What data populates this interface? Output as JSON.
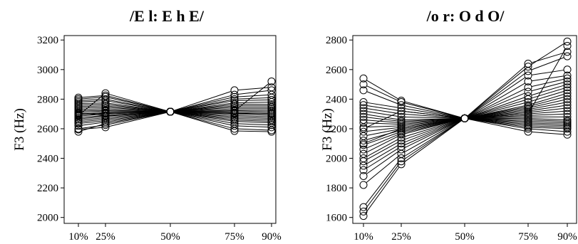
{
  "chart_data": [
    {
      "type": "line",
      "title": "/E l: E h E/",
      "xlabel": "",
      "ylabel": "F3 (Hz)",
      "x": [
        "10%",
        "25%",
        "50%",
        "75%",
        "90%"
      ],
      "ylim": [
        1960,
        3230
      ],
      "yticks": [
        2000,
        2200,
        2400,
        2600,
        2800,
        3000,
        3200
      ],
      "grid": false,
      "normalization_value_50pct": 2715,
      "series": [
        {
          "values": [
            2580,
            2635,
            2715,
            2600,
            2590
          ]
        },
        {
          "values": [
            2600,
            2625,
            2715,
            2620,
            2610
          ]
        },
        {
          "values": [
            2620,
            2645,
            2715,
            2635,
            2625
          ]
        },
        {
          "values": [
            2635,
            2655,
            2715,
            2650,
            2640
          ]
        },
        {
          "values": [
            2645,
            2665,
            2715,
            2660,
            2650
          ]
        },
        {
          "values": [
            2655,
            2675,
            2715,
            2670,
            2660
          ]
        },
        {
          "values": [
            2665,
            2685,
            2715,
            2680,
            2670
          ]
        },
        {
          "values": [
            2675,
            2690,
            2715,
            2690,
            2680
          ]
        },
        {
          "values": [
            2685,
            2700,
            2715,
            2700,
            2690
          ]
        },
        {
          "values": [
            2695,
            2705,
            2715,
            2705,
            2700
          ]
        },
        {
          "values": [
            2700,
            2710,
            2715,
            2710,
            2705
          ]
        },
        {
          "values": [
            2710,
            2720,
            2715,
            2720,
            2715
          ]
        },
        {
          "values": [
            2720,
            2725,
            2715,
            2725,
            2725
          ]
        },
        {
          "values": [
            2730,
            2735,
            2715,
            2735,
            2735
          ]
        },
        {
          "values": [
            2740,
            2745,
            2715,
            2745,
            2745
          ]
        },
        {
          "values": [
            2750,
            2755,
            2715,
            2755,
            2755
          ]
        },
        {
          "values": [
            2760,
            2765,
            2715,
            2765,
            2765
          ]
        },
        {
          "values": [
            2770,
            2775,
            2715,
            2775,
            2780
          ]
        },
        {
          "values": [
            2780,
            2790,
            2715,
            2790,
            2795
          ]
        },
        {
          "values": [
            2790,
            2800,
            2715,
            2800,
            2810
          ]
        },
        {
          "values": [
            2800,
            2815,
            2715,
            2815,
            2830
          ]
        },
        {
          "values": [
            2810,
            2825,
            2715,
            2830,
            2860
          ]
        },
        {
          "values": [
            2690,
            2840,
            2715,
            2860,
            2880
          ]
        },
        {
          "values": [
            2705,
            2690,
            2715,
            2720,
            2920
          ]
        },
        {
          "values": [
            2595,
            2610,
            2715,
            2585,
            2580
          ]
        }
      ]
    },
    {
      "type": "line",
      "title": "/o r: O d O/",
      "xlabel": "",
      "ylabel": "F3 (Hz)",
      "x": [
        "10%",
        "25%",
        "50%",
        "75%",
        "90%"
      ],
      "ylim": [
        1560,
        2830
      ],
      "yticks": [
        1600,
        1800,
        2000,
        2200,
        2400,
        2600,
        2800
      ],
      "grid": false,
      "normalization_value_50pct": 2270,
      "series": [
        {
          "values": [
            1610,
            1960,
            2270,
            2180,
            2160
          ]
        },
        {
          "values": [
            1640,
            1980,
            2270,
            2200,
            2180
          ]
        },
        {
          "values": [
            1670,
            2000,
            2270,
            2210,
            2200
          ]
        },
        {
          "values": [
            1820,
            2030,
            2270,
            2220,
            2210
          ]
        },
        {
          "values": [
            1880,
            2060,
            2270,
            2230,
            2220
          ]
        },
        {
          "values": [
            1920,
            2080,
            2270,
            2240,
            2230
          ]
        },
        {
          "values": [
            1950,
            2100,
            2270,
            2250,
            2240
          ]
        },
        {
          "values": [
            1980,
            2120,
            2270,
            2260,
            2250
          ]
        },
        {
          "values": [
            2000,
            2140,
            2270,
            2270,
            2260
          ]
        },
        {
          "values": [
            2030,
            2160,
            2270,
            2280,
            2280
          ]
        },
        {
          "values": [
            2060,
            2170,
            2270,
            2290,
            2300
          ]
        },
        {
          "values": [
            2090,
            2180,
            2270,
            2300,
            2320
          ]
        },
        {
          "values": [
            2120,
            2190,
            2270,
            2310,
            2340
          ]
        },
        {
          "values": [
            2150,
            2200,
            2270,
            2320,
            2360
          ]
        },
        {
          "values": [
            2180,
            2210,
            2270,
            2330,
            2380
          ]
        },
        {
          "values": [
            2210,
            2220,
            2270,
            2340,
            2400
          ]
        },
        {
          "values": [
            2240,
            2230,
            2270,
            2350,
            2420
          ]
        },
        {
          "values": [
            2260,
            2240,
            2270,
            2360,
            2440
          ]
        },
        {
          "values": [
            2280,
            2250,
            2270,
            2380,
            2460
          ]
        },
        {
          "values": [
            2300,
            2260,
            2270,
            2400,
            2480
          ]
        },
        {
          "values": [
            2320,
            2280,
            2270,
            2420,
            2500
          ]
        },
        {
          "values": [
            2340,
            2300,
            2270,
            2450,
            2520
          ]
        },
        {
          "values": [
            2360,
            2320,
            2270,
            2480,
            2540
          ]
        },
        {
          "values": [
            2380,
            2340,
            2270,
            2520,
            2560
          ]
        },
        {
          "values": [
            2460,
            2360,
            2270,
            2560,
            2600
          ]
        },
        {
          "values": [
            2500,
            2380,
            2270,
            2590,
            2690
          ]
        },
        {
          "values": [
            2540,
            2390,
            2270,
            2640,
            2720
          ]
        },
        {
          "values": [
            2200,
            2320,
            2270,
            2620,
            2790
          ]
        },
        {
          "values": [
            2100,
            2200,
            2270,
            2300,
            2760
          ]
        }
      ]
    }
  ]
}
